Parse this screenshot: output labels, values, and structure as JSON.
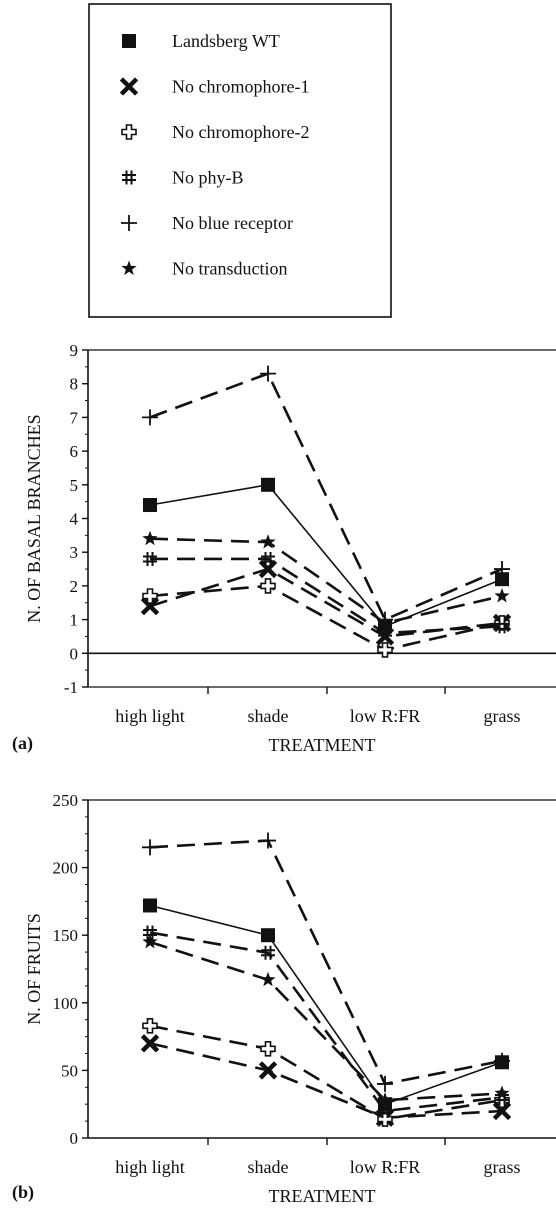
{
  "legend": {
    "entries": [
      {
        "label": "Landsberg WT",
        "marker": "filled-square"
      },
      {
        "label": "No chromophore-1",
        "marker": "bold-x"
      },
      {
        "label": "No chromophore-2",
        "marker": "open-cross"
      },
      {
        "label": "No phy-B",
        "marker": "hash"
      },
      {
        "label": "No blue receptor",
        "marker": "plus"
      },
      {
        "label": "No transduction",
        "marker": "star"
      }
    ]
  },
  "chart_data": [
    {
      "type": "line",
      "panel": "(a)",
      "categories": [
        "high light",
        "shade",
        "low R:FR",
        "grass"
      ],
      "xlabel": "TREATMENT",
      "ylabel": "N. OF BASAL BRANCHES",
      "ylim": [
        -1,
        9
      ],
      "yticks": [
        "-1",
        "0",
        "1",
        "2",
        "3",
        "4",
        "5",
        "6",
        "7",
        "8",
        "9"
      ],
      "series": [
        {
          "name": "Landsberg WT",
          "marker": "filled-square",
          "values": [
            4.4,
            5.0,
            0.8,
            2.2
          ]
        },
        {
          "name": "No chromophore-1",
          "marker": "bold-x",
          "values": [
            1.4,
            2.5,
            0.5,
            0.9
          ]
        },
        {
          "name": "No chromophore-2",
          "marker": "open-cross",
          "values": [
            1.7,
            2.0,
            0.1,
            0.9
          ]
        },
        {
          "name": "No phy-B",
          "marker": "hash",
          "values": [
            2.8,
            2.8,
            0.6,
            0.8
          ]
        },
        {
          "name": "No blue receptor",
          "marker": "plus",
          "values": [
            7.0,
            8.3,
            1.0,
            2.5
          ]
        },
        {
          "name": "No transduction",
          "marker": "star",
          "values": [
            3.4,
            3.3,
            0.9,
            1.7
          ]
        }
      ]
    },
    {
      "type": "line",
      "panel": "(b)",
      "categories": [
        "high light",
        "shade",
        "low R:FR",
        "grass"
      ],
      "xlabel": "TREATMENT",
      "ylabel": "N. OF FRUITS",
      "ylim": [
        0,
        250
      ],
      "yticks": [
        "0",
        "50",
        "100",
        "150",
        "200",
        "250"
      ],
      "series": [
        {
          "name": "Landsberg WT",
          "marker": "filled-square",
          "values": [
            172,
            150,
            25,
            56
          ]
        },
        {
          "name": "No chromophore-1",
          "marker": "bold-x",
          "values": [
            70,
            50,
            15,
            20
          ]
        },
        {
          "name": "No chromophore-2",
          "marker": "open-cross",
          "values": [
            83,
            66,
            14,
            28
          ]
        },
        {
          "name": "No phy-B",
          "marker": "hash",
          "values": [
            152,
            137,
            20,
            30
          ]
        },
        {
          "name": "No blue receptor",
          "marker": "plus",
          "values": [
            215,
            220,
            40,
            57
          ]
        },
        {
          "name": "No transduction",
          "marker": "star",
          "values": [
            145,
            117,
            28,
            33
          ]
        }
      ]
    }
  ]
}
